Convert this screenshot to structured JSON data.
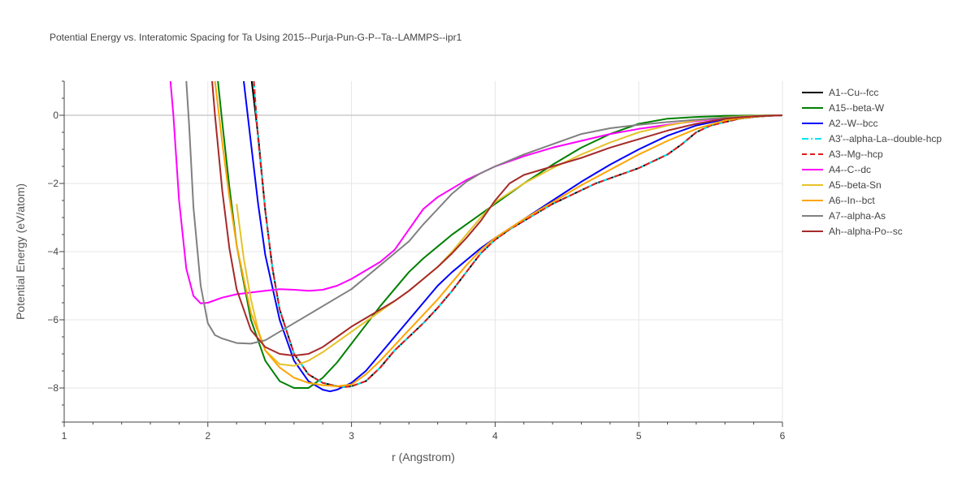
{
  "chart_data": {
    "type": "line",
    "title": "Potential Energy vs. Interatomic Spacing for Ta Using 2015--Purja-Pun-G-P--Ta--LAMMPS--ipr1",
    "xlabel": "r (Angstrom)",
    "ylabel": "Potential Energy (eV/atom)",
    "xlim": [
      1,
      6
    ],
    "ylim": [
      -9,
      1
    ],
    "xticks": [
      1,
      2,
      3,
      4,
      5,
      6
    ],
    "yticks": [
      0,
      -2,
      -4,
      -6,
      -8
    ],
    "grid": true,
    "legend_position": "right",
    "series": [
      {
        "name": "A1--Cu--fcc",
        "color": "#000000",
        "dash": "solid",
        "x": [
          2.3,
          2.35,
          2.4,
          2.45,
          2.5,
          2.6,
          2.7,
          2.8,
          2.9,
          2.95,
          3.0,
          3.1,
          3.2,
          3.3,
          3.4,
          3.5,
          3.6,
          3.7,
          3.8,
          3.9,
          4.0,
          4.1,
          4.2,
          4.3,
          4.4,
          4.5,
          4.6,
          4.7,
          4.8,
          4.9,
          5.0,
          5.1,
          5.2,
          5.3,
          5.4,
          5.5,
          5.6,
          5.7,
          5.8,
          5.9,
          6.0
        ],
        "y": [
          1.2,
          -0.6,
          -2.8,
          -4.5,
          -5.7,
          -7.0,
          -7.6,
          -7.85,
          -7.95,
          -7.97,
          -7.95,
          -7.8,
          -7.4,
          -6.9,
          -6.5,
          -6.1,
          -5.65,
          -5.15,
          -4.6,
          -4.05,
          -3.65,
          -3.35,
          -3.1,
          -2.85,
          -2.6,
          -2.4,
          -2.2,
          -2.0,
          -1.85,
          -1.7,
          -1.55,
          -1.35,
          -1.15,
          -0.85,
          -0.5,
          -0.3,
          -0.2,
          -0.1,
          -0.05,
          -0.02,
          0.0
        ]
      },
      {
        "name": "A15--beta-W",
        "color": "#008000",
        "dash": "solid",
        "x": [
          2.07,
          2.1,
          2.15,
          2.2,
          2.3,
          2.4,
          2.5,
          2.6,
          2.7,
          2.8,
          2.9,
          3.0,
          3.1,
          3.2,
          3.3,
          3.4,
          3.5,
          3.6,
          3.7,
          3.8,
          3.9,
          4.0,
          4.2,
          4.4,
          4.6,
          4.8,
          5.0,
          5.2,
          5.4,
          5.6,
          5.8,
          6.0
        ],
        "y": [
          1.0,
          -0.2,
          -2.1,
          -3.8,
          -6.0,
          -7.2,
          -7.8,
          -8.0,
          -8.0,
          -7.7,
          -7.25,
          -6.7,
          -6.15,
          -5.6,
          -5.1,
          -4.6,
          -4.2,
          -3.85,
          -3.5,
          -3.2,
          -2.9,
          -2.6,
          -2.0,
          -1.45,
          -0.95,
          -0.55,
          -0.25,
          -0.1,
          -0.05,
          -0.02,
          -0.01,
          0.0
        ]
      },
      {
        "name": "A2--W--bcc",
        "color": "#0000ff",
        "dash": "solid",
        "x": [
          2.25,
          2.3,
          2.35,
          2.4,
          2.5,
          2.6,
          2.7,
          2.8,
          2.85,
          2.9,
          3.0,
          3.1,
          3.2,
          3.3,
          3.4,
          3.5,
          3.6,
          3.7,
          3.8,
          3.9,
          4.0,
          4.2,
          4.4,
          4.6,
          4.8,
          5.0,
          5.2,
          5.4,
          5.6,
          5.8,
          6.0
        ],
        "y": [
          1.0,
          -0.8,
          -2.6,
          -4.1,
          -6.0,
          -7.2,
          -7.8,
          -8.05,
          -8.1,
          -8.05,
          -7.85,
          -7.5,
          -7.0,
          -6.5,
          -6.0,
          -5.5,
          -5.0,
          -4.6,
          -4.25,
          -3.9,
          -3.6,
          -3.05,
          -2.5,
          -1.95,
          -1.45,
          -1.0,
          -0.6,
          -0.3,
          -0.12,
          -0.04,
          0.0
        ]
      },
      {
        "name": "A3'--alpha-La--double-hcp",
        "color": "#00e5ee",
        "dash": "dashdot",
        "x": [
          2.32,
          2.35,
          2.4,
          2.45,
          2.5,
          2.6,
          2.7,
          2.8,
          2.9,
          2.95,
          3.0,
          3.1,
          3.2,
          3.3,
          3.4,
          3.5,
          3.6,
          3.7,
          3.8,
          3.9,
          4.0,
          4.1,
          4.2,
          4.3,
          4.4,
          4.5,
          4.6,
          4.7,
          4.8,
          4.9,
          5.0,
          5.1,
          5.2,
          5.3,
          5.4,
          5.5,
          5.6,
          5.7,
          5.8,
          5.9,
          6.0
        ],
        "y": [
          1.0,
          -0.7,
          -2.8,
          -4.5,
          -5.7,
          -7.0,
          -7.6,
          -7.85,
          -7.95,
          -7.97,
          -7.95,
          -7.8,
          -7.4,
          -6.9,
          -6.5,
          -6.1,
          -5.65,
          -5.15,
          -4.6,
          -4.05,
          -3.65,
          -3.35,
          -3.1,
          -2.85,
          -2.6,
          -2.4,
          -2.2,
          -2.0,
          -1.85,
          -1.7,
          -1.55,
          -1.35,
          -1.15,
          -0.85,
          -0.5,
          -0.3,
          -0.2,
          -0.1,
          -0.05,
          -0.02,
          0.0
        ]
      },
      {
        "name": "A3--Mg--hcp",
        "color": "#e31a1c",
        "dash": "dash",
        "x": [
          2.32,
          2.35,
          2.4,
          2.45,
          2.5,
          2.6,
          2.7,
          2.8,
          2.9,
          2.95,
          3.0,
          3.1,
          3.2,
          3.3,
          3.4,
          3.5,
          3.6,
          3.7,
          3.8,
          3.9,
          4.0,
          4.1,
          4.2,
          4.3,
          4.4,
          4.5,
          4.6,
          4.7,
          4.8,
          4.9,
          5.0,
          5.1,
          5.2,
          5.3,
          5.4,
          5.5,
          5.6,
          5.7,
          5.8,
          5.9,
          6.0
        ],
        "y": [
          1.0,
          -0.7,
          -2.8,
          -4.5,
          -5.7,
          -7.0,
          -7.6,
          -7.85,
          -7.95,
          -7.97,
          -7.95,
          -7.8,
          -7.4,
          -6.9,
          -6.5,
          -6.1,
          -5.65,
          -5.15,
          -4.6,
          -4.05,
          -3.65,
          -3.35,
          -3.1,
          -2.85,
          -2.6,
          -2.4,
          -2.2,
          -2.0,
          -1.85,
          -1.7,
          -1.55,
          -1.35,
          -1.15,
          -0.85,
          -0.5,
          -0.3,
          -0.2,
          -0.1,
          -0.05,
          -0.02,
          0.0
        ]
      },
      {
        "name": "A4--C--dc",
        "color": "#ff00ff",
        "dash": "solid",
        "x": [
          1.74,
          1.76,
          1.8,
          1.85,
          1.9,
          1.95,
          2.0,
          2.1,
          2.2,
          2.3,
          2.4,
          2.5,
          2.6,
          2.7,
          2.8,
          2.9,
          3.0,
          3.1,
          3.2,
          3.3,
          3.4,
          3.5,
          3.6,
          3.7,
          3.8,
          3.9,
          4.0,
          4.2,
          4.4,
          4.6,
          4.8,
          5.0,
          5.2,
          5.4,
          5.6,
          5.8,
          6.0
        ],
        "y": [
          1.0,
          0.0,
          -2.5,
          -4.5,
          -5.3,
          -5.52,
          -5.5,
          -5.35,
          -5.25,
          -5.2,
          -5.15,
          -5.1,
          -5.12,
          -5.15,
          -5.12,
          -5.0,
          -4.8,
          -4.55,
          -4.3,
          -3.95,
          -3.35,
          -2.75,
          -2.4,
          -2.15,
          -1.9,
          -1.7,
          -1.5,
          -1.2,
          -0.95,
          -0.75,
          -0.55,
          -0.4,
          -0.28,
          -0.17,
          -0.08,
          -0.03,
          0.0
        ]
      },
      {
        "name": "A5--beta-Sn",
        "color": "#e6c229",
        "dash": "solid",
        "x": [
          2.2,
          2.25,
          2.3,
          2.35,
          2.4,
          2.5,
          2.6,
          2.7,
          2.8,
          2.9,
          3.0,
          3.1,
          3.2,
          3.3,
          3.4,
          3.5,
          3.6,
          3.7,
          3.8,
          3.9,
          4.0,
          4.2,
          4.4,
          4.6,
          4.8,
          5.0,
          5.2,
          5.4,
          5.6,
          5.8,
          6.0
        ],
        "y": [
          -2.6,
          -4.2,
          -5.4,
          -6.3,
          -6.9,
          -7.3,
          -7.35,
          -7.2,
          -6.95,
          -6.65,
          -6.35,
          -6.05,
          -5.75,
          -5.45,
          -5.15,
          -4.8,
          -4.45,
          -4.0,
          -3.5,
          -3.0,
          -2.55,
          -2.0,
          -1.55,
          -1.15,
          -0.8,
          -0.5,
          -0.3,
          -0.15,
          -0.06,
          -0.02,
          0.0
        ]
      },
      {
        "name": "A6--In--bct",
        "color": "#ffa500",
        "dash": "solid",
        "x": [
          2.05,
          2.1,
          2.15,
          2.2,
          2.3,
          2.4,
          2.5,
          2.6,
          2.7,
          2.8,
          2.9,
          3.0,
          3.1,
          3.2,
          3.3,
          3.4,
          3.5,
          3.6,
          3.7,
          3.8,
          3.9,
          4.0,
          4.2,
          4.4,
          4.6,
          4.8,
          5.0,
          5.2,
          5.4,
          5.6,
          5.8,
          6.0
        ],
        "y": [
          1.0,
          -0.8,
          -2.4,
          -3.8,
          -5.8,
          -6.9,
          -7.4,
          -7.7,
          -7.85,
          -7.92,
          -7.95,
          -7.9,
          -7.6,
          -7.2,
          -6.75,
          -6.3,
          -5.85,
          -5.4,
          -4.9,
          -4.4,
          -3.95,
          -3.6,
          -3.05,
          -2.55,
          -2.05,
          -1.6,
          -1.15,
          -0.75,
          -0.4,
          -0.15,
          -0.04,
          0.0
        ]
      },
      {
        "name": "A7--alpha-As",
        "color": "#808080",
        "dash": "solid",
        "x": [
          1.85,
          1.87,
          1.9,
          1.95,
          2.0,
          2.05,
          2.1,
          2.2,
          2.3,
          2.4,
          2.5,
          2.6,
          2.7,
          2.8,
          2.9,
          3.0,
          3.1,
          3.2,
          3.3,
          3.4,
          3.5,
          3.6,
          3.7,
          3.8,
          3.9,
          4.0,
          4.2,
          4.4,
          4.6,
          4.8,
          5.0,
          5.2,
          5.4,
          5.6,
          5.8,
          6.0
        ],
        "y": [
          1.0,
          -0.3,
          -2.7,
          -5.0,
          -6.1,
          -6.45,
          -6.55,
          -6.68,
          -6.7,
          -6.6,
          -6.35,
          -6.1,
          -5.85,
          -5.6,
          -5.35,
          -5.1,
          -4.75,
          -4.4,
          -4.05,
          -3.7,
          -3.2,
          -2.75,
          -2.3,
          -1.95,
          -1.7,
          -1.5,
          -1.15,
          -0.85,
          -0.55,
          -0.38,
          -0.28,
          -0.2,
          -0.13,
          -0.07,
          -0.03,
          0.0
        ]
      },
      {
        "name": "Ah--alpha-Po--sc",
        "color": "#a52a2a",
        "dash": "solid",
        "x": [
          2.03,
          2.05,
          2.1,
          2.15,
          2.2,
          2.3,
          2.4,
          2.5,
          2.6,
          2.7,
          2.8,
          2.9,
          3.0,
          3.1,
          3.2,
          3.3,
          3.4,
          3.5,
          3.6,
          3.7,
          3.8,
          3.9,
          4.0,
          4.1,
          4.2,
          4.4,
          4.6,
          4.8,
          5.0,
          5.2,
          5.4,
          5.6,
          5.8,
          6.0
        ],
        "y": [
          1.0,
          0.0,
          -2.2,
          -3.9,
          -5.1,
          -6.3,
          -6.8,
          -7.0,
          -7.05,
          -7.0,
          -6.8,
          -6.5,
          -6.2,
          -5.95,
          -5.7,
          -5.45,
          -5.15,
          -4.8,
          -4.45,
          -4.05,
          -3.6,
          -3.1,
          -2.5,
          -2.0,
          -1.75,
          -1.5,
          -1.25,
          -0.95,
          -0.7,
          -0.45,
          -0.25,
          -0.1,
          -0.03,
          0.0
        ]
      }
    ]
  }
}
